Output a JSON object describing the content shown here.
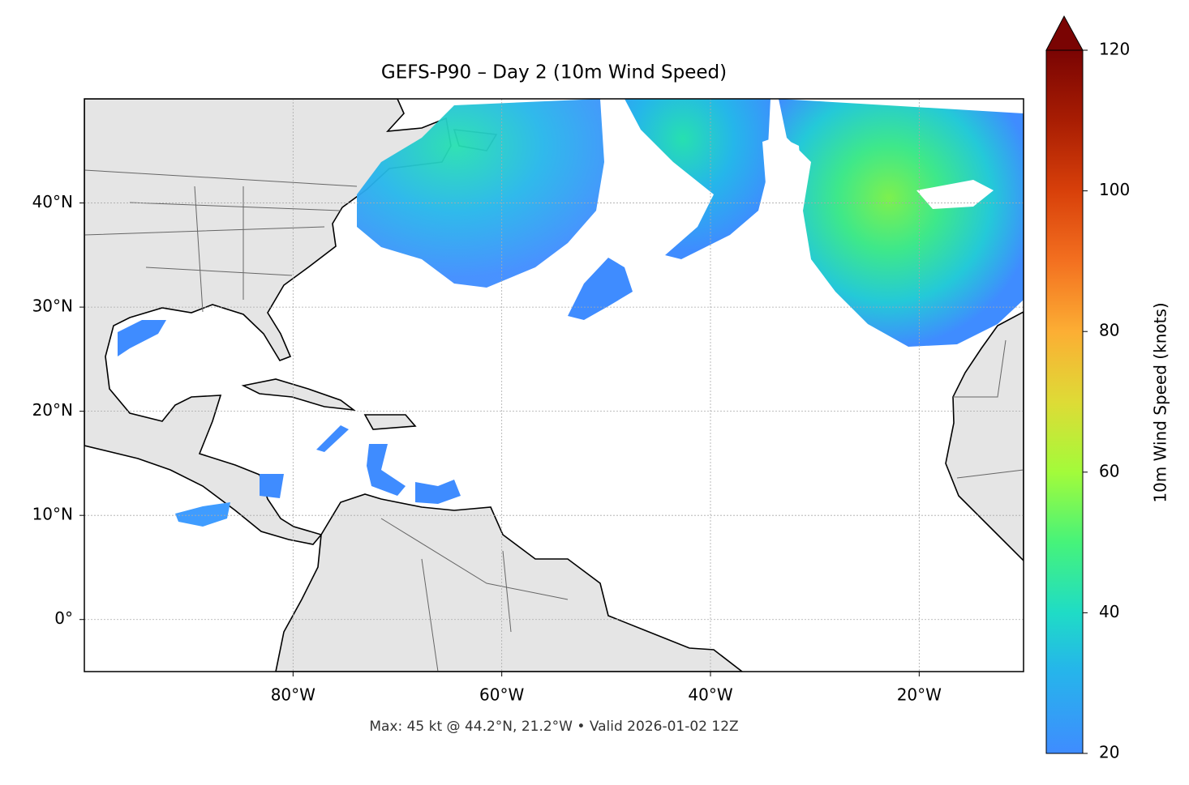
{
  "map": {
    "title": "GEFS-P90 – Day 2 (10m Wind Speed)",
    "footer": "Max: 45 kt @ 44.2°N, 21.2°W • Valid 2026-01-02 12Z",
    "xlim": [
      -100,
      -10
    ],
    "ylim": [
      -5,
      50
    ],
    "xticks": [
      {
        "value": -80,
        "label": "80°W"
      },
      {
        "value": -60,
        "label": "60°W"
      },
      {
        "value": -40,
        "label": "40°W"
      },
      {
        "value": -20,
        "label": "20°W"
      }
    ],
    "yticks": [
      {
        "value": 0,
        "label": "0°"
      },
      {
        "value": 10,
        "label": "10°N"
      },
      {
        "value": 20,
        "label": "20°N"
      },
      {
        "value": 30,
        "label": "30°N"
      },
      {
        "value": 40,
        "label": "40°N"
      }
    ],
    "grid": true,
    "colorbar": {
      "label": "10m Wind Speed (knots)",
      "lim": [
        20,
        120
      ],
      "ticks": [
        20,
        40,
        60,
        80,
        100,
        120
      ]
    }
  }
}
